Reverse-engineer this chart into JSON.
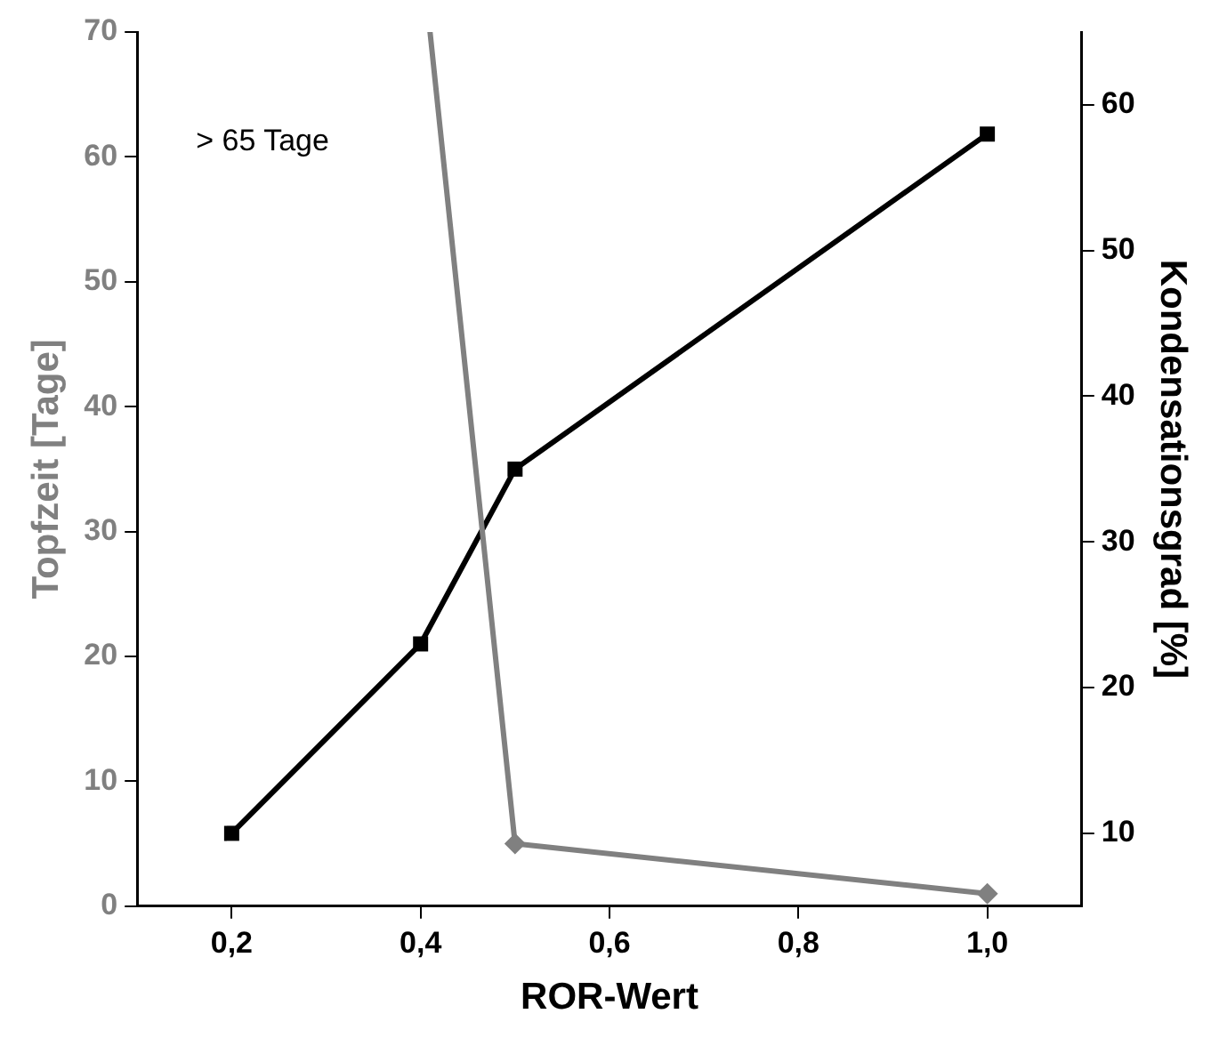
{
  "chart_data": {
    "type": "line",
    "xlabel": "ROR-Wert",
    "ylabel": "Topfzeit [Tage]",
    "y2label": "Kondensationsgrad [%]",
    "annotations": [
      "> 65 Tage"
    ],
    "xlim": [
      0.1,
      1.1
    ],
    "xticks": [
      {
        "value": 0.2,
        "label": "0,2"
      },
      {
        "value": 0.4,
        "label": "0,4"
      },
      {
        "value": 0.6,
        "label": "0,6"
      },
      {
        "value": 0.8,
        "label": "0,8"
      },
      {
        "value": 1.0,
        "label": "1,0"
      }
    ],
    "ylim": [
      0,
      70
    ],
    "yticks": [
      0,
      10,
      20,
      30,
      40,
      50,
      60,
      70
    ],
    "y2lim": [
      5,
      65
    ],
    "y2ticks": [
      10,
      20,
      30,
      40,
      50,
      60
    ],
    "grid": false,
    "legend": false,
    "line_style": "solid",
    "series": [
      {
        "color": "#808080",
        "marker": "diamond",
        "x": [
          0.41,
          0.5,
          1.0
        ],
        "values": [
          70,
          5,
          1
        ]
      },
      {
        "color": "#000000",
        "marker": "square",
        "axis": "y2",
        "x": [
          0.2,
          0.4,
          0.5,
          1.0
        ],
        "values": [
          10,
          23,
          35,
          58
        ]
      }
    ]
  }
}
